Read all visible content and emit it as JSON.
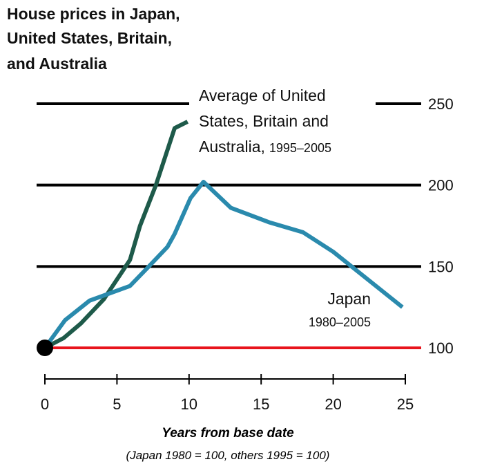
{
  "chart_data": {
    "type": "line",
    "title_lines": [
      "House prices in Japan,",
      "United States, Britain,",
      "and Australia"
    ],
    "xlabel": "Years from base date",
    "xlabel_note": "(Japan 1980 = 100, others 1995 = 100)",
    "xlim": [
      0,
      25
    ],
    "ylim": [
      100,
      250
    ],
    "xticks": [
      0,
      5,
      10,
      15,
      20,
      25
    ],
    "yticks": [
      100,
      150,
      200,
      250
    ],
    "grid": true,
    "baseline": 100,
    "series": [
      {
        "name": "Average of United States, Britain and Australia",
        "name_lines": [
          "Average of United",
          "States, Britain and",
          "Australia,"
        ],
        "period": "1995–2005",
        "color": "#1e5a4a",
        "x": [
          0,
          1.3,
          2.5,
          4.1,
          5.9,
          6.6,
          7.7,
          9.0,
          9.9
        ],
        "y": [
          100,
          106,
          115,
          130,
          154,
          175,
          200,
          235,
          239
        ]
      },
      {
        "name": "Japan",
        "period": "1980–2005",
        "color": "#2a8aad",
        "x": [
          0,
          1.4,
          3.1,
          5.9,
          7.1,
          8.5,
          9.0,
          10.1,
          11,
          12.9,
          15.6,
          17.9,
          20,
          24.8
        ],
        "y": [
          100,
          117,
          129,
          138,
          149,
          162,
          170,
          192,
          202,
          186,
          177,
          171,
          159,
          125
        ]
      }
    ],
    "colors": {
      "baseline": "#e8141c",
      "grid": "#000000"
    }
  }
}
